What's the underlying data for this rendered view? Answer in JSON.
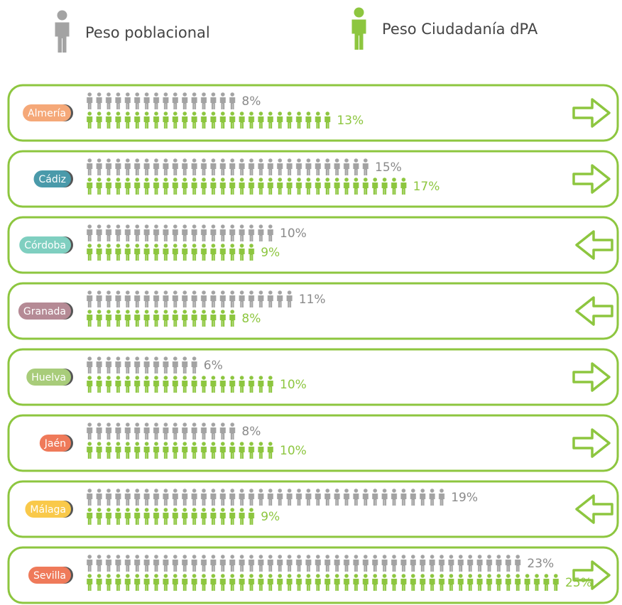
{
  "chart_data": {
    "type": "pictogram",
    "categories": [
      "Almería",
      "Cádiz",
      "Córdoba",
      "Granada",
      "Huelva",
      "Jaén",
      "Málaga",
      "Sevilla"
    ],
    "category_colors": [
      "#f5a878",
      "#4a9aaa",
      "#7fcfc0",
      "#b58a95",
      "#a8cc7a",
      "#ef7a5a",
      "#f9c94a",
      "#ef7a5a"
    ],
    "frame_color": "#8dc63f",
    "series": [
      {
        "name": "Peso poblacional",
        "color": "#a3a3a3",
        "values": [
          8,
          15,
          10,
          11,
          6,
          8,
          19,
          23
        ],
        "value_labels": [
          "8%",
          "15%",
          "10%",
          "11%",
          "6%",
          "8%",
          "19%",
          "23%"
        ]
      },
      {
        "name": "Peso Ciudadanía dPA",
        "color": "#8dc63f",
        "values": [
          13,
          17,
          9,
          8,
          10,
          10,
          9,
          25
        ],
        "value_labels": [
          "13%",
          "17%",
          "9%",
          "8%",
          "10%",
          "10%",
          "9%",
          "25%"
        ]
      }
    ]
  }
}
